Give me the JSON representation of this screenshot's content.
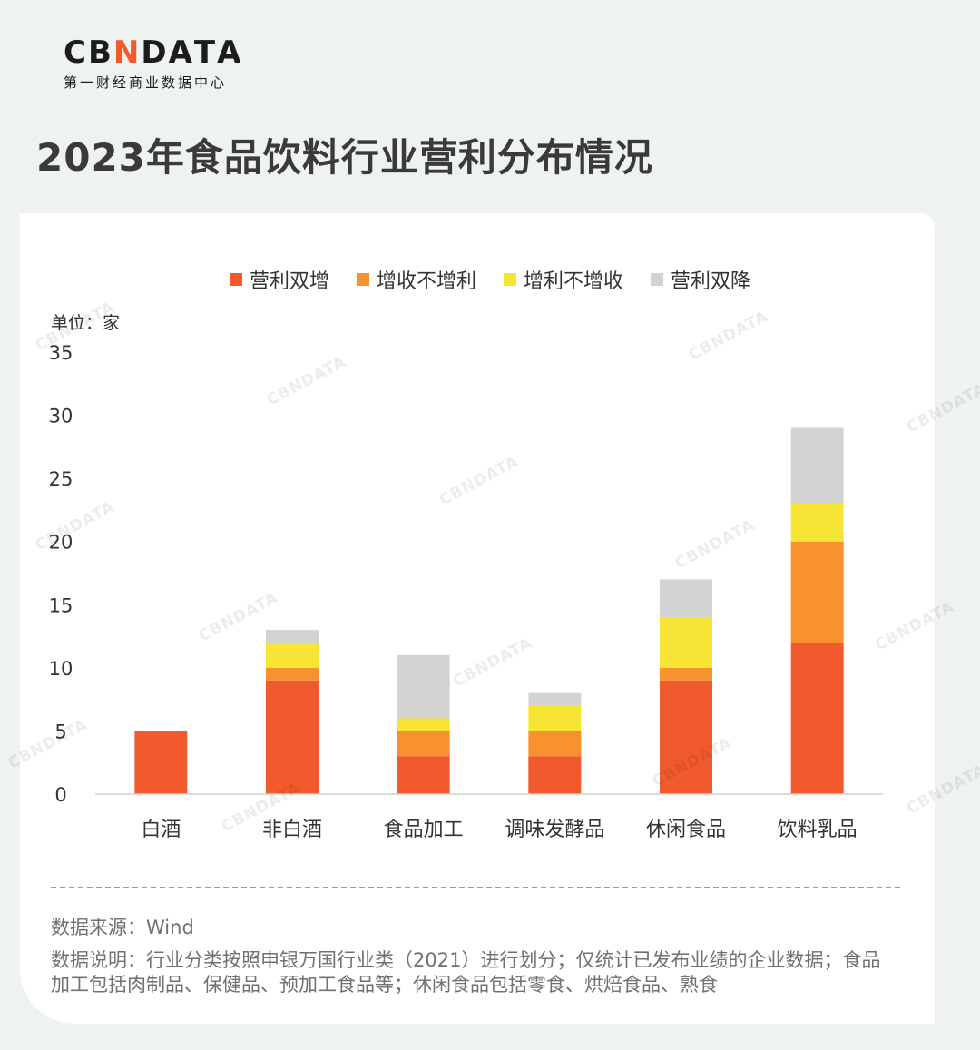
{
  "brand": {
    "logo_text": "CBNDATA",
    "logo_sub": "第一财经商业数据中心"
  },
  "page_title": "2023年食品饮料行业营利分布情况",
  "unit_label": "单位：家",
  "footer": {
    "source": "数据来源：Wind",
    "note": "数据说明：行业分类按照申银万国行业类（2021）进行划分；仅统计已发布业绩的企业数据；食品加工包括肉制品、保健品、预加工食品等；休闲食品包括零食、烘焙食品、熟食"
  },
  "colors": {
    "营利双增": "#f05a2c",
    "增收不增利": "#f7922e",
    "增利不增收": "#f6e535",
    "营利双降": "#d3d4d2"
  },
  "chart_data": {
    "type": "bar",
    "stacked": true,
    "title": "2023年食品饮料行业营利分布情况",
    "ylabel": "单位：家",
    "xlabel": "",
    "ylim": [
      0,
      35
    ],
    "yticks": [
      0,
      5,
      10,
      15,
      20,
      25,
      30,
      35
    ],
    "legend_position": "top-center",
    "grid": false,
    "categories": [
      "白酒",
      "非白酒",
      "食品加工",
      "调味发酵品",
      "休闲食品",
      "饮料乳品"
    ],
    "series": [
      {
        "name": "营利双增",
        "color": "#f05a2c",
        "values": [
          5,
          9,
          3,
          3,
          9,
          12
        ]
      },
      {
        "name": "增收不增利",
        "color": "#f7922e",
        "values": [
          0,
          1,
          2,
          2,
          1,
          8
        ]
      },
      {
        "name": "增利不增收",
        "color": "#f6e535",
        "values": [
          0,
          2,
          1,
          2,
          4,
          3
        ]
      },
      {
        "name": "营利双降",
        "color": "#d3d4d2",
        "values": [
          0,
          1,
          5,
          1,
          3,
          6
        ]
      }
    ]
  }
}
